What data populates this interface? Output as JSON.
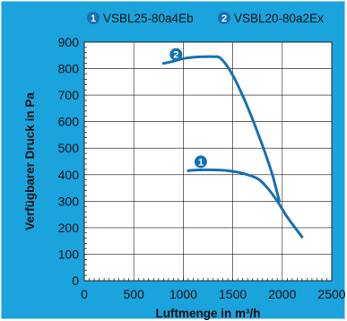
{
  "colors": {
    "background": "#1aa3dd",
    "plot_area": "#ffffff",
    "curve": "#1570b3",
    "grid": "#1a1a1a",
    "marker": "#1570b3"
  },
  "chart_data": {
    "type": "line",
    "title": "",
    "xlabel": "Luftmenge in m³/h",
    "ylabel": "Verfügbarer Druck in Pa",
    "xlim": [
      0,
      2500
    ],
    "ylim": [
      0,
      900
    ],
    "x_ticks": [
      0,
      500,
      1000,
      1500,
      2000,
      2500
    ],
    "y_ticks": [
      0,
      100,
      200,
      300,
      400,
      500,
      600,
      700,
      800,
      900
    ],
    "grid": true,
    "legend_position": "top",
    "legend": [
      {
        "number": "1",
        "label": "VSBL25-80a4Eb"
      },
      {
        "number": "2",
        "label": "VSBL20-80a2Ex"
      }
    ],
    "series": [
      {
        "marker_label": "1",
        "x": [
          1050,
          1150,
          1300,
          1450,
          1600,
          1750,
          1850,
          1950,
          2050,
          2200
        ],
        "y": [
          415,
          418,
          418,
          415,
          405,
          385,
          350,
          300,
          240,
          165
        ]
      },
      {
        "marker_label": "2",
        "x": [
          800,
          900,
          1000,
          1100,
          1200,
          1300,
          1380,
          1500,
          1650,
          1800,
          1900,
          1970
        ],
        "y": [
          820,
          828,
          838,
          843,
          845,
          845,
          838,
          775,
          655,
          510,
          400,
          300
        ]
      }
    ]
  }
}
